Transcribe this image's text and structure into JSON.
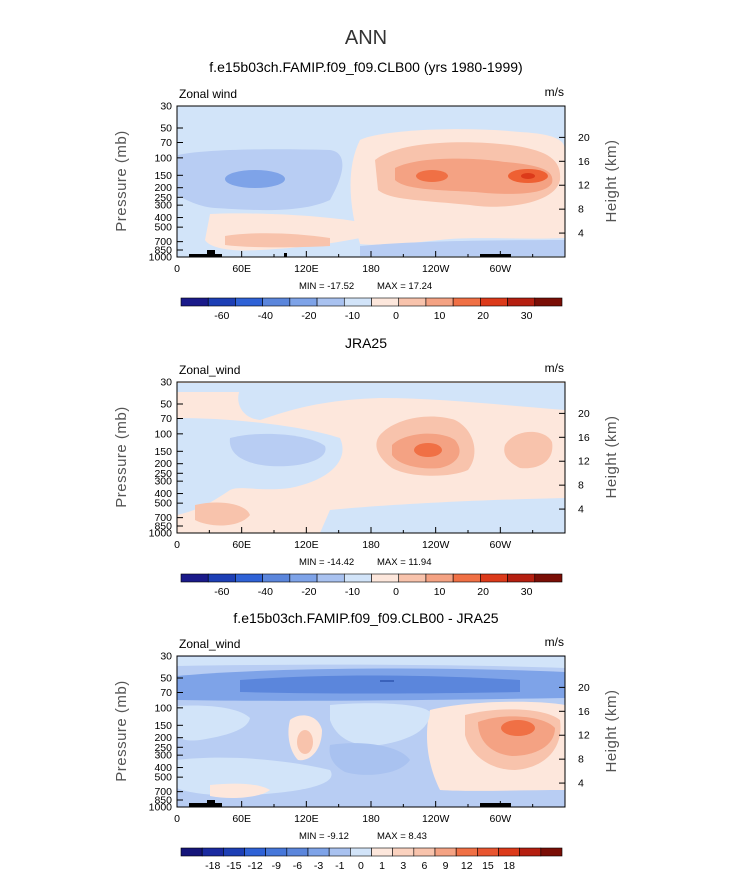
{
  "figure_title": "ANN",
  "chart_data": [
    {
      "type": "heatmap",
      "title": "f.e15b03ch.FAMIP.f09_f09.CLB00 (yrs 1980-1999)",
      "variable_label": "Zonal wind",
      "units": "m/s",
      "ylabel": "Pressure (mb)",
      "ylabel_right": "Height (km)",
      "pressure_ticks": [
        "30",
        "50",
        "70",
        "100",
        "150",
        "200",
        "250",
        "300",
        "400",
        "500",
        "700",
        "850",
        "1000"
      ],
      "height_ticks": [
        "20",
        "16",
        "12",
        "8",
        "4"
      ],
      "lon_ticks": [
        "0",
        "60E",
        "120E",
        "180",
        "120W",
        "60W"
      ],
      "min_label": "MIN = -17.52",
      "max_label": "MAX = 17.24",
      "colorbar_labels": [
        "-60",
        "-40",
        "-20",
        "-10",
        "0",
        "10",
        "20",
        "30"
      ],
      "min": -17.52,
      "max": 17.24,
      "features": [
        {
          "lon": 225,
          "p": 150,
          "value": 15
        },
        {
          "lon": 300,
          "p": 150,
          "value": 17
        },
        {
          "lon": 90,
          "p": 150,
          "value": -12
        },
        {
          "lon": 160,
          "p": 700,
          "value": 3
        },
        {
          "lon": 100,
          "p": 30,
          "value": -3
        }
      ]
    },
    {
      "type": "heatmap",
      "title": "JRA25",
      "variable_label": "Zonal_wind",
      "units": "m/s",
      "ylabel": "Pressure (mb)",
      "ylabel_right": "Height (km)",
      "pressure_ticks": [
        "30",
        "50",
        "70",
        "100",
        "150",
        "200",
        "250",
        "300",
        "400",
        "500",
        "700",
        "850",
        "1000"
      ],
      "height_ticks": [
        "20",
        "16",
        "12",
        "8",
        "4"
      ],
      "lon_ticks": [
        "0",
        "60E",
        "120E",
        "180",
        "120W",
        "60W"
      ],
      "min_label": "MIN = -14.42",
      "max_label": "MAX = 11.94",
      "colorbar_labels": [
        "-60",
        "-40",
        "-20",
        "-10",
        "0",
        "10",
        "20",
        "30"
      ],
      "min": -14.42,
      "max": 11.94,
      "features": [
        {
          "lon": 225,
          "p": 150,
          "value": 12
        },
        {
          "lon": 310,
          "p": 150,
          "value": 9
        },
        {
          "lon": 90,
          "p": 150,
          "value": -8
        },
        {
          "lon": 180,
          "p": 50,
          "value": 3
        },
        {
          "lon": 40,
          "p": 1000,
          "value": 2
        }
      ]
    },
    {
      "type": "heatmap",
      "title": "f.e15b03ch.FAMIP.f09_f09.CLB00 - JRA25",
      "variable_label": "Zonal_wind",
      "units": "m/s",
      "ylabel": "Pressure (mb)",
      "ylabel_right": "Height (km)",
      "pressure_ticks": [
        "30",
        "50",
        "70",
        "100",
        "150",
        "200",
        "250",
        "300",
        "400",
        "500",
        "700",
        "850",
        "1000"
      ],
      "height_ticks": [
        "20",
        "16",
        "12",
        "8",
        "4"
      ],
      "lon_ticks": [
        "0",
        "60E",
        "120E",
        "180",
        "120W",
        "60W"
      ],
      "min_label": "MIN = -9.12",
      "max_label": "MAX = 8.43",
      "colorbar_labels": [
        "-18",
        "-15",
        "-12",
        "-9",
        "-6",
        "-3",
        "-1",
        "0",
        "1",
        "3",
        "6",
        "9",
        "12",
        "15",
        "18"
      ],
      "min": -9.12,
      "max": 8.43,
      "features": [
        {
          "lon": 180,
          "p": 50,
          "value": -9
        },
        {
          "lon": 300,
          "p": 150,
          "value": 8
        },
        {
          "lon": 120,
          "p": 200,
          "value": 3
        },
        {
          "lon": 230,
          "p": 400,
          "value": -3
        },
        {
          "lon": 60,
          "p": 300,
          "value": -4
        }
      ]
    }
  ]
}
